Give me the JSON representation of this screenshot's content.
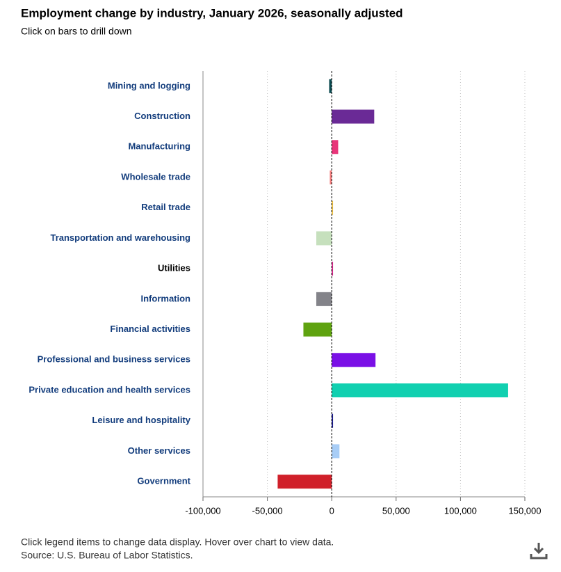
{
  "chart_data": {
    "type": "hbar",
    "title": "Employment change by industry, January 2026, seasonally adjusted",
    "subtitle": "Click on bars to drill down",
    "footnote": "Click legend items to change data display. Hover over chart to view data.",
    "source": "Source: U.S. Bureau of Labor Statistics.",
    "categories": [
      "Mining and logging",
      "Construction",
      "Manufacturing",
      "Wholesale trade",
      "Retail trade",
      "Transportation and warehousing",
      "Utilities",
      "Information",
      "Financial activities",
      "Professional and business services",
      "Private education and health services",
      "Leisure and hospitality",
      "Other services",
      "Government"
    ],
    "values": [
      -2000,
      33000,
      5000,
      -1500,
      1000,
      -12000,
      1000,
      -12000,
      -22000,
      34000,
      137000,
      1000,
      6000,
      -42000
    ],
    "colors": [
      "#0b4a50",
      "#6a2a96",
      "#e8357a",
      "#f47c7c",
      "#f3c444",
      "#c6e0bd",
      "#d8288c",
      "#838389",
      "#5fa310",
      "#7a10e6",
      "#11d0b0",
      "#1a1a8c",
      "#a8cdf6",
      "#d0202a"
    ],
    "label_colors": [
      "#123c7c",
      "#123c7c",
      "#123c7c",
      "#123c7c",
      "#123c7c",
      "#123c7c",
      "#000000",
      "#123c7c",
      "#123c7c",
      "#123c7c",
      "#123c7c",
      "#123c7c",
      "#123c7c",
      "#123c7c"
    ],
    "xlim": [
      -100000,
      150000
    ],
    "xticks": [
      {
        "value": -100000,
        "label": "-100,000"
      },
      {
        "value": -50000,
        "label": "-50,000"
      },
      0,
      {
        "value": 50000,
        "label": "50,000"
      },
      {
        "value": 100000,
        "label": "100,000"
      },
      {
        "value": 150000,
        "label": "150,000"
      }
    ],
    "grid": true
  }
}
